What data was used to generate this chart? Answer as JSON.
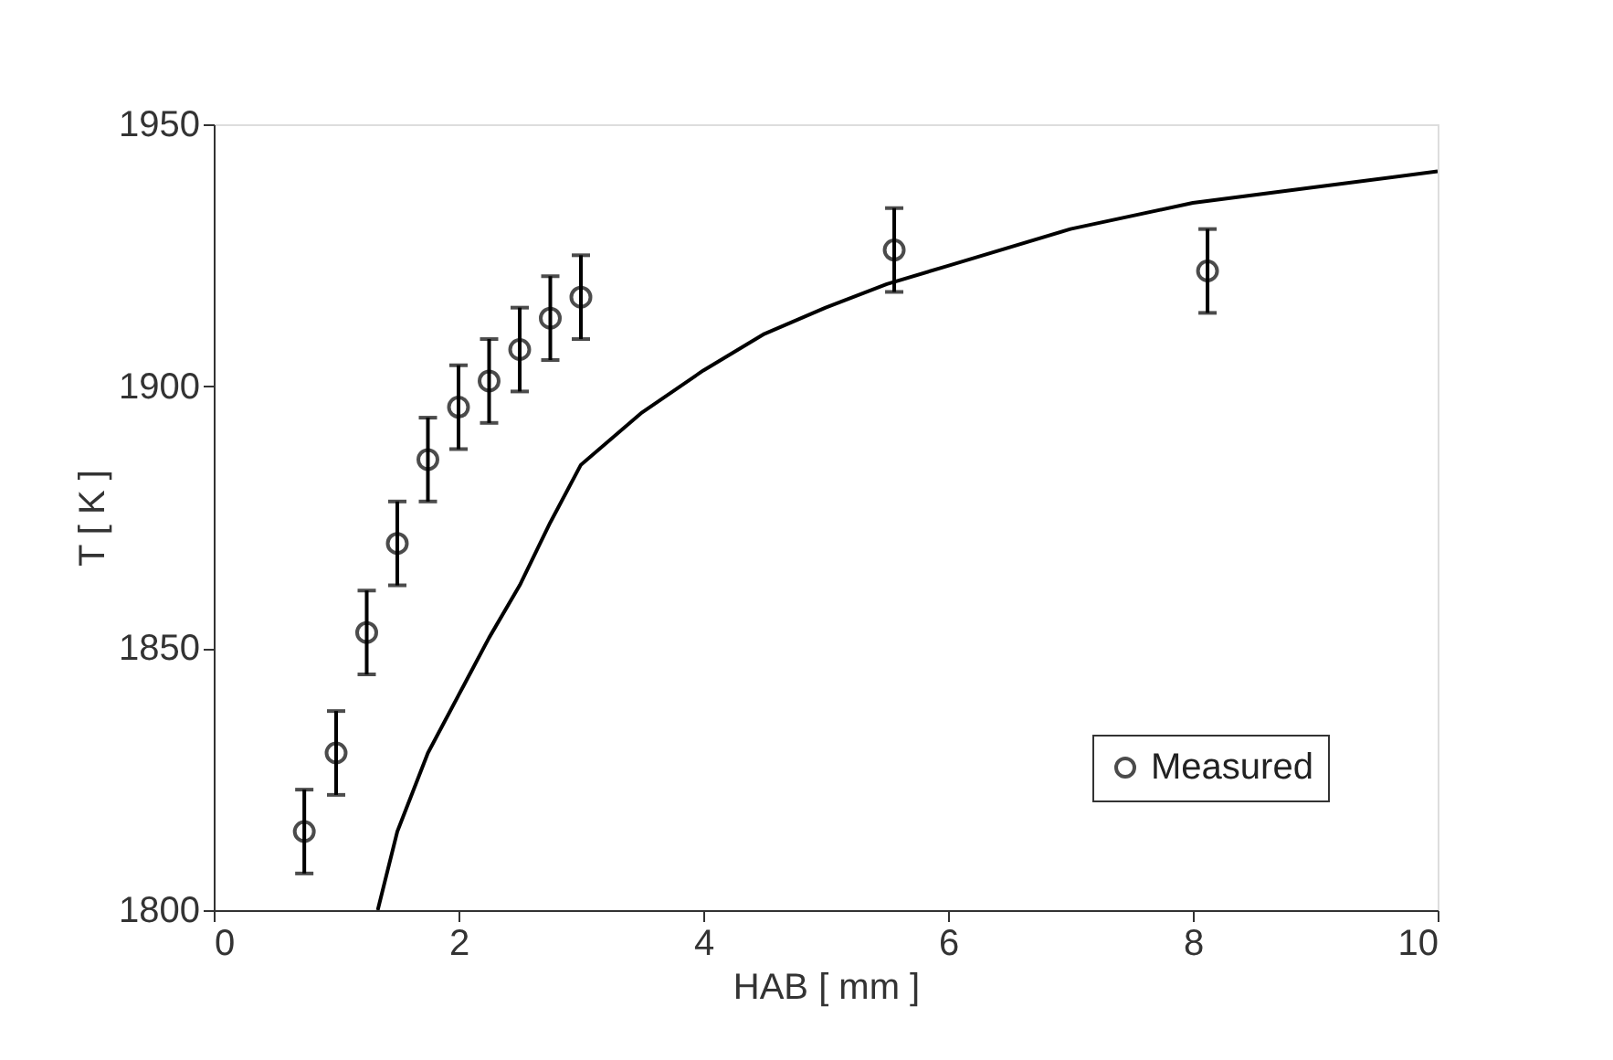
{
  "chart_data": {
    "type": "scatter",
    "xlabel": "HAB [ mm ]",
    "ylabel": "T [ K ]",
    "xlim": [
      0,
      10
    ],
    "xticks": [
      0,
      2,
      4,
      6,
      8,
      10
    ],
    "ylim": [
      1800,
      1950
    ],
    "yticks": [
      1800,
      1850,
      1900,
      1950
    ],
    "grid": false,
    "legend": "bottom right",
    "series": [
      {
        "type": "line",
        "color": "#000000",
        "line_style": "solid",
        "marker": "none",
        "x": [
          1.34,
          1.5,
          1.75,
          2.0,
          2.25,
          2.5,
          2.75,
          3.0,
          3.5,
          4.0,
          4.5,
          5.0,
          5.5,
          6.0,
          7.0,
          8.0,
          9.0,
          10.0
        ],
        "values": [
          1800,
          1815,
          1830,
          1841,
          1852,
          1862,
          1874,
          1885,
          1895,
          1903,
          1910,
          1915,
          1919.5,
          1923,
          1930,
          1935,
          1938,
          1941
        ]
      },
      {
        "type": "scatter",
        "name": "Measured",
        "color": "#000000",
        "marker": "circle",
        "x": [
          0.74,
          1.0,
          1.25,
          1.5,
          1.75,
          2.0,
          2.25,
          2.5,
          2.75,
          3.0,
          5.56,
          8.12
        ],
        "values": [
          1815,
          1830,
          1853,
          1870,
          1886,
          1896,
          1901,
          1907,
          1913,
          1917,
          1926,
          1922
        ],
        "errors": [
          8,
          8,
          8,
          8,
          8,
          8,
          8,
          8,
          8,
          8,
          8,
          8
        ]
      }
    ]
  }
}
